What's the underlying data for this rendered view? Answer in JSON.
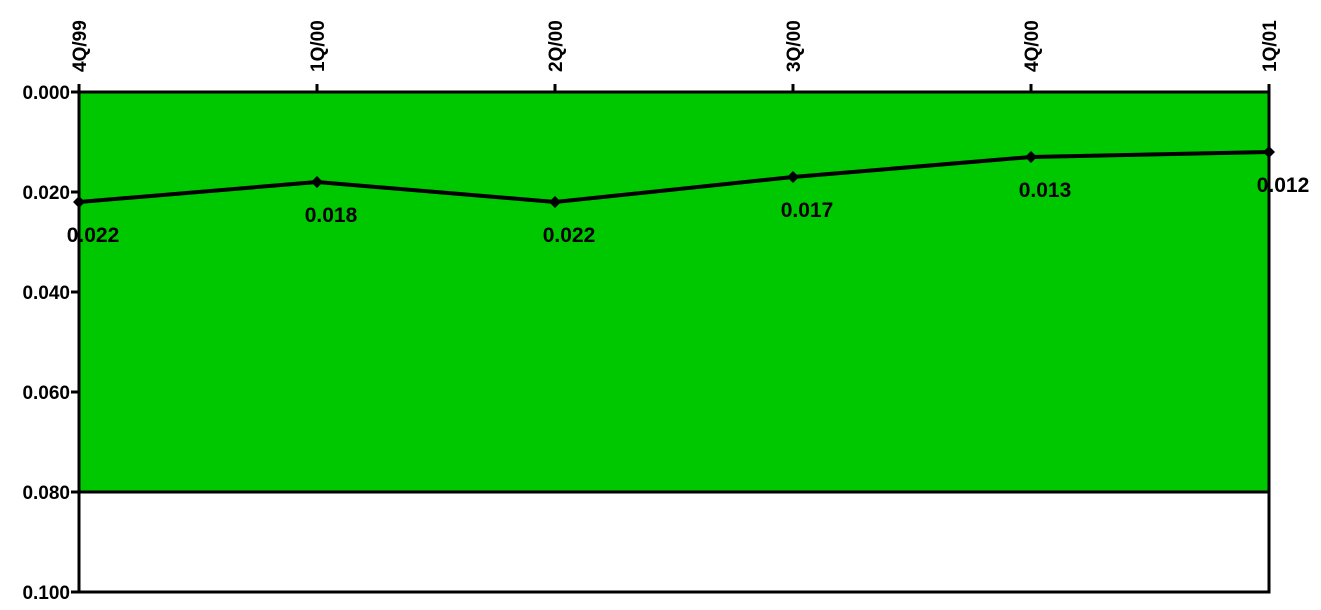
{
  "chart_data": {
    "type": "line",
    "categories": [
      "4Q/99",
      "1Q/00",
      "2Q/00",
      "3Q/00",
      "4Q/00",
      "1Q/01"
    ],
    "series": [
      {
        "values": [
          0.022,
          0.018,
          0.022,
          0.017,
          0.013,
          0.012
        ],
        "labels": [
          "0.022",
          "0.018",
          "0.022",
          "0.017",
          "0.013",
          "0.012"
        ]
      }
    ],
    "ylim": [
      0.0,
      0.1
    ],
    "y_inverted": true,
    "y_ticks": [
      0.0,
      0.02,
      0.04,
      0.06,
      0.08,
      0.1
    ],
    "y_tick_labels": [
      "0.000",
      "0.020",
      "0.040",
      "0.060",
      "0.080",
      "0.100"
    ],
    "x_tick_position": "top",
    "x_tick_rotation": "vertical",
    "band": {
      "from": 0.0,
      "to": 0.08,
      "color": "#00c800"
    },
    "line_color": "#000000",
    "marker": "diamond",
    "grid": false,
    "title": "",
    "xlabel": "",
    "ylabel": ""
  }
}
